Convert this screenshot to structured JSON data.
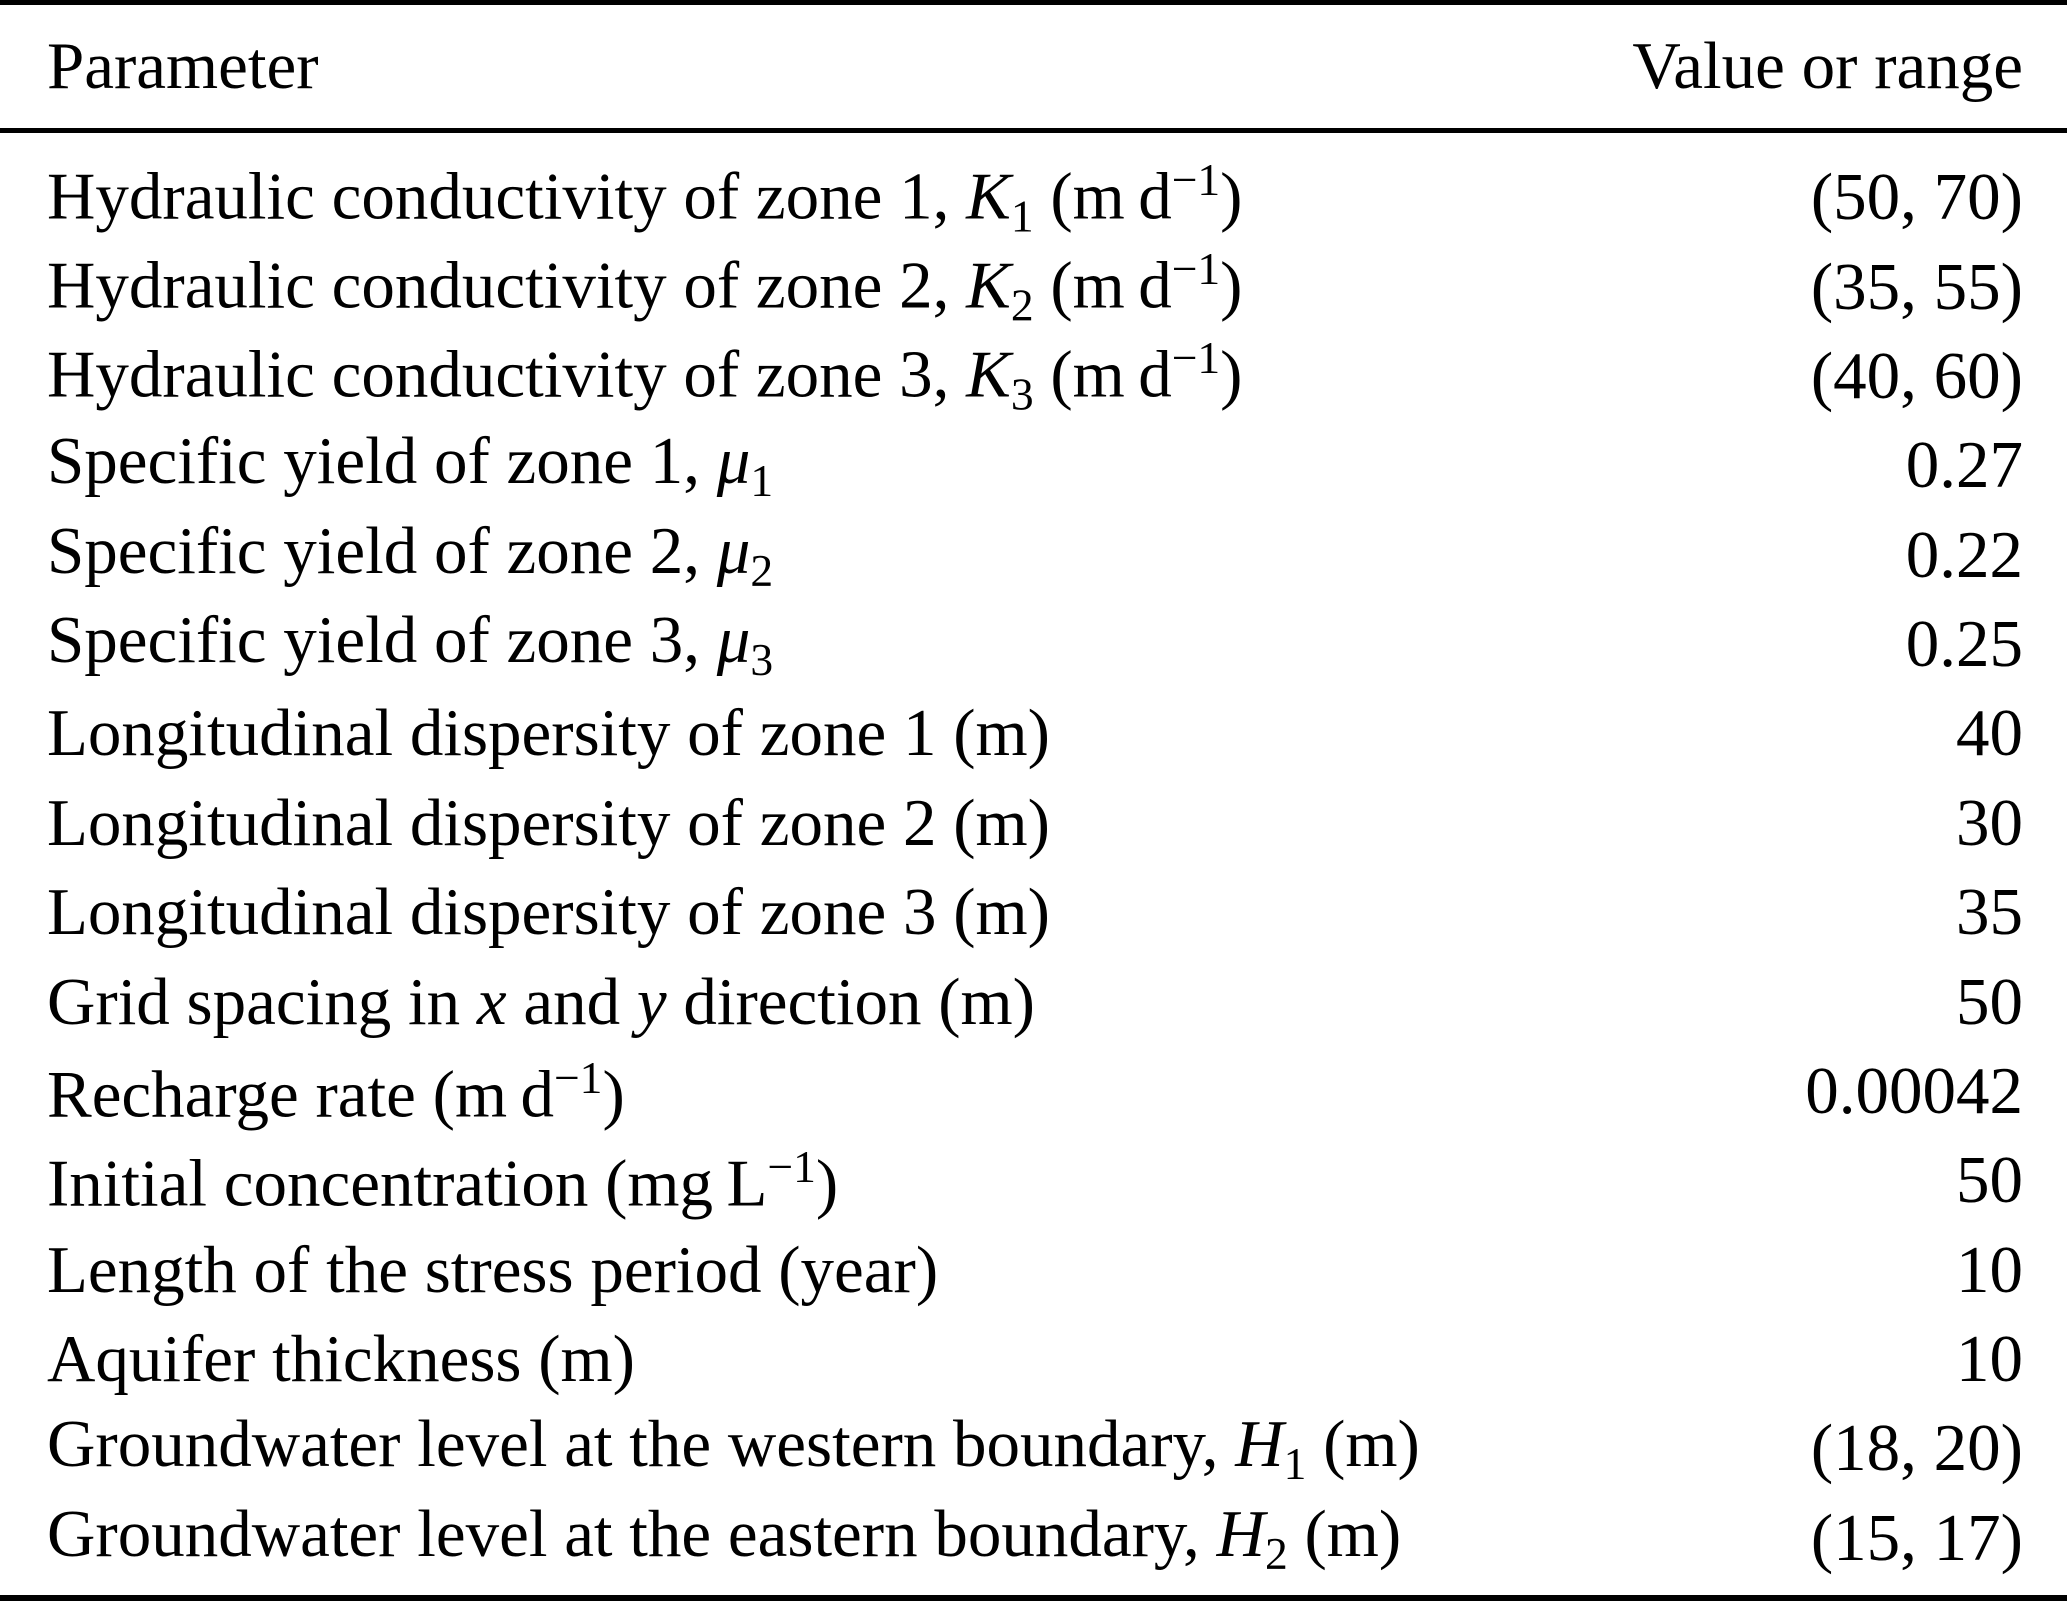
{
  "table": {
    "header": {
      "param": "Parameter",
      "value": "Value or range"
    },
    "rows": [
      {
        "param": [
          {
            "t": "Hydraulic conductivity of zone 1, "
          },
          {
            "t": "K",
            "s": "i"
          },
          {
            "t": "1",
            "s": "sub"
          },
          {
            "t": " (m d"
          },
          {
            "t": "−1",
            "s": "sup"
          },
          {
            "t": ")"
          }
        ],
        "value": "(50, 70)"
      },
      {
        "param": [
          {
            "t": "Hydraulic conductivity of zone 2, "
          },
          {
            "t": "K",
            "s": "i"
          },
          {
            "t": "2",
            "s": "sub"
          },
          {
            "t": " (m d"
          },
          {
            "t": "−1",
            "s": "sup"
          },
          {
            "t": ")"
          }
        ],
        "value": "(35, 55)"
      },
      {
        "param": [
          {
            "t": "Hydraulic conductivity of zone 3, "
          },
          {
            "t": "K",
            "s": "i"
          },
          {
            "t": "3",
            "s": "sub"
          },
          {
            "t": " (m d"
          },
          {
            "t": "−1",
            "s": "sup"
          },
          {
            "t": ")"
          }
        ],
        "value": "(40, 60)"
      },
      {
        "param": [
          {
            "t": "Specific yield of zone 1, "
          },
          {
            "t": "μ",
            "s": "i"
          },
          {
            "t": "1",
            "s": "sub"
          }
        ],
        "value": "0.27"
      },
      {
        "param": [
          {
            "t": "Specific yield of zone 2, "
          },
          {
            "t": "μ",
            "s": "i"
          },
          {
            "t": "2",
            "s": "sub"
          }
        ],
        "value": "0.22"
      },
      {
        "param": [
          {
            "t": "Specific yield of zone 3, "
          },
          {
            "t": "μ",
            "s": "i"
          },
          {
            "t": "3",
            "s": "sub"
          }
        ],
        "value": "0.25"
      },
      {
        "param": [
          {
            "t": "Longitudinal dispersity of zone 1 (m)"
          }
        ],
        "value": "40"
      },
      {
        "param": [
          {
            "t": "Longitudinal dispersity of zone 2 (m)"
          }
        ],
        "value": "30"
      },
      {
        "param": [
          {
            "t": "Longitudinal dispersity of zone 3 (m)"
          }
        ],
        "value": "35"
      },
      {
        "param": [
          {
            "t": "Grid spacing in "
          },
          {
            "t": "x",
            "s": "i"
          },
          {
            "t": " and "
          },
          {
            "t": "y",
            "s": "i"
          },
          {
            "t": " direction (m)"
          }
        ],
        "value": "50"
      },
      {
        "param": [
          {
            "t": "Recharge rate (m d"
          },
          {
            "t": "−1",
            "s": "sup"
          },
          {
            "t": ")"
          }
        ],
        "value": "0.00042"
      },
      {
        "param": [
          {
            "t": "Initial concentration (mg L"
          },
          {
            "t": "−1",
            "s": "sup"
          },
          {
            "t": ")"
          }
        ],
        "value": "50"
      },
      {
        "param": [
          {
            "t": "Length of the stress period (year)"
          }
        ],
        "value": "10"
      },
      {
        "param": [
          {
            "t": "Aquifer thickness (m)"
          }
        ],
        "value": "10"
      },
      {
        "param": [
          {
            "t": "Groundwater level at the western boundary, "
          },
          {
            "t": "H",
            "s": "i"
          },
          {
            "t": "1",
            "s": "sub"
          },
          {
            "t": " (m)"
          }
        ],
        "value": "(18, 20)"
      },
      {
        "param": [
          {
            "t": "Groundwater level at the eastern boundary, "
          },
          {
            "t": "H",
            "s": "i"
          },
          {
            "t": "2",
            "s": "sub"
          },
          {
            "t": " (m)"
          }
        ],
        "value": "(15, 17)"
      }
    ]
  }
}
